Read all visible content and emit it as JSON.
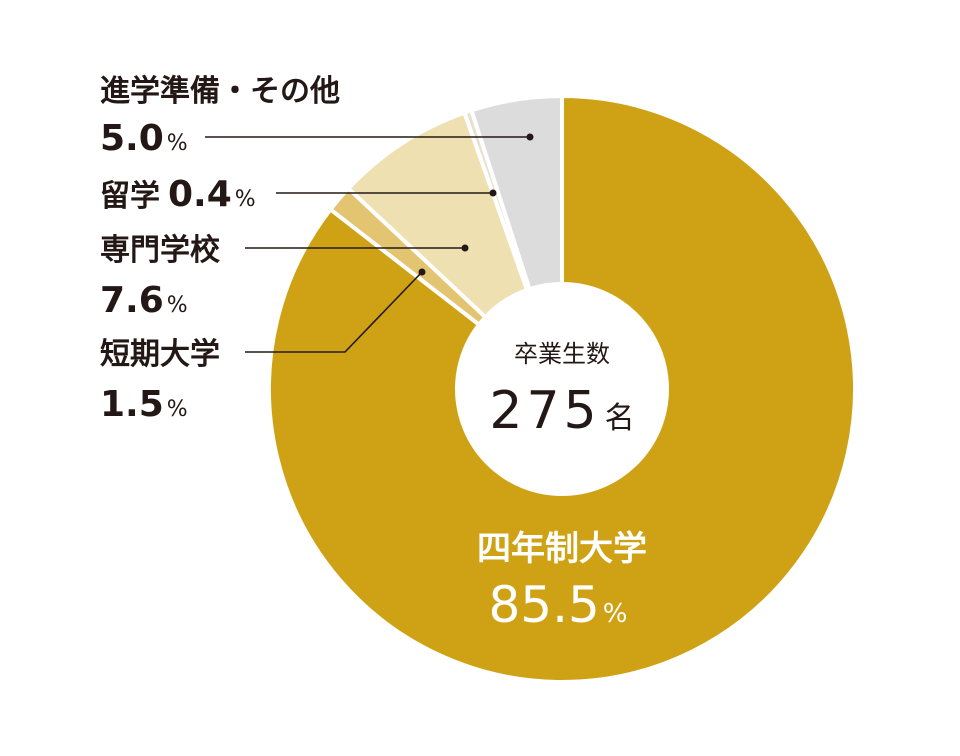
{
  "chart_data": {
    "type": "pie",
    "donut": true,
    "categories": [
      "四年制大学",
      "短期大学",
      "専門学校",
      "留学",
      "進学準備・その他"
    ],
    "values": [
      85.5,
      1.5,
      7.6,
      0.4,
      5.0
    ],
    "unit": "%",
    "colors": [
      "#CFA216",
      "#E2C471",
      "#EEE0B0",
      "#E5E1CE",
      "#DCDCDC"
    ],
    "center": {
      "title": "卒業生数",
      "value": "275",
      "unit": "名"
    }
  },
  "labels": {
    "university": {
      "name": "四年制大学",
      "value": "85.5",
      "unit": "%"
    },
    "junior_college": {
      "name": "短期大学",
      "value": "1.5",
      "unit": "%"
    },
    "vocational": {
      "name": "専門学校",
      "value": "7.6",
      "unit": "%"
    },
    "study_abroad": {
      "name": "留学",
      "value": "0.4",
      "unit": "%"
    },
    "other": {
      "name": "進学準備・その他",
      "value": "5.0",
      "unit": "%"
    }
  }
}
